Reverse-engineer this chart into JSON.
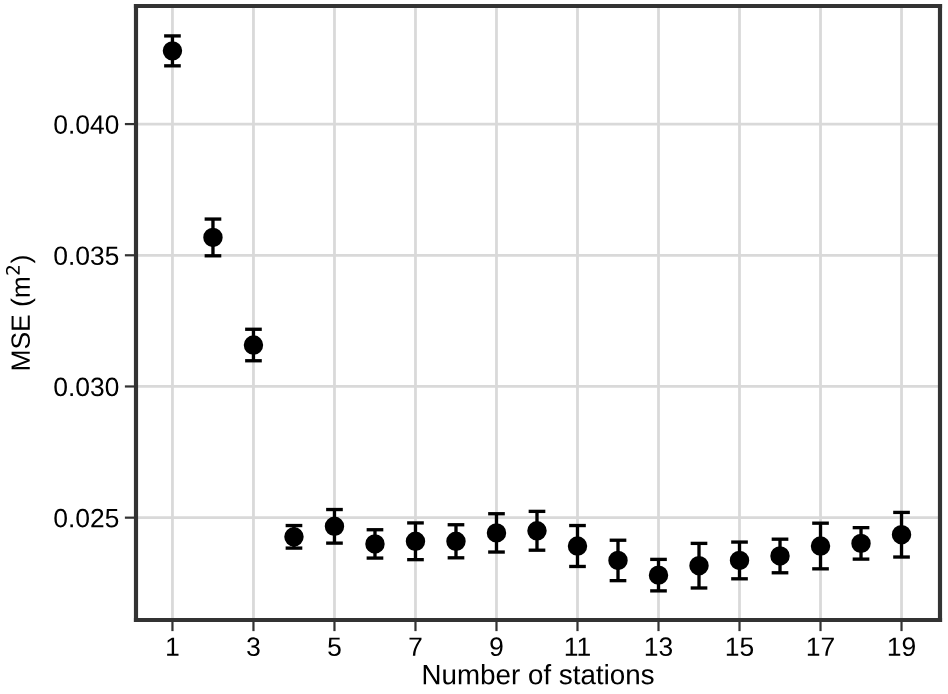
{
  "chart_data": {
    "type": "scatter",
    "xlabel": "Number of stations",
    "ylabel": "MSE (m$^{2}$)",
    "x": [
      1,
      2,
      3,
      4,
      5,
      6,
      7,
      8,
      9,
      10,
      11,
      12,
      13,
      14,
      15,
      16,
      17,
      18,
      19
    ],
    "values": [
      0.04279,
      0.03568,
      0.03158,
      0.02427,
      0.02467,
      0.024,
      0.0241,
      0.0241,
      0.02442,
      0.0245,
      0.02392,
      0.02337,
      0.02281,
      0.02317,
      0.02337,
      0.02354,
      0.02392,
      0.02402,
      0.02435
    ],
    "errors": [
      0.00057,
      0.0007,
      0.0006,
      0.00043,
      0.00064,
      0.00054,
      0.0007,
      0.00063,
      0.00073,
      0.00074,
      0.00078,
      0.00077,
      0.0006,
      0.00085,
      0.0007,
      0.00064,
      0.00087,
      0.0006,
      0.00085
    ],
    "color": "#000000",
    "marker": "circle",
    "xlim": [
      0.1,
      19.95
    ],
    "ylim": [
      0.0211,
      0.0445
    ],
    "xticks": [
      1,
      3,
      5,
      7,
      9,
      11,
      13,
      15,
      17,
      19
    ],
    "yticks": [
      {
        "value": 0.025,
        "label": "0.025"
      },
      {
        "value": 0.03,
        "label": "0.030"
      },
      {
        "value": 0.035,
        "label": "0.035"
      },
      {
        "value": 0.04,
        "label": "0.040"
      }
    ],
    "grid": true
  }
}
